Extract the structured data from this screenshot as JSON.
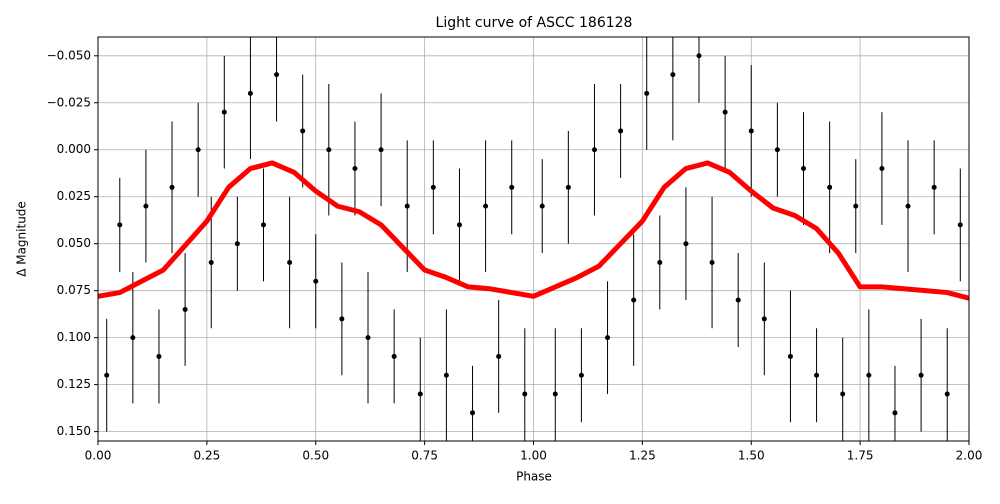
{
  "chart_data": {
    "type": "scatter",
    "title": "Light curve of ASCC 186128",
    "x_label": "Phase",
    "y_label": "Δ Magnitude",
    "xlim": [
      0,
      2
    ],
    "ylim": [
      -0.06,
      0.155
    ],
    "invert_y": true,
    "grid": true,
    "xticks": [
      {
        "value": 0,
        "label": "0.00"
      },
      {
        "value": 0.25,
        "label": "0.25"
      },
      {
        "value": 0.5,
        "label": "0.50"
      },
      {
        "value": 0.75,
        "label": "0.75"
      },
      {
        "value": 1,
        "label": "1.00"
      },
      {
        "value": 1.25,
        "label": "1.25"
      },
      {
        "value": 1.5,
        "label": "1.50"
      },
      {
        "value": 1.75,
        "label": "1.75"
      },
      {
        "value": 2,
        "label": "2.00"
      }
    ],
    "yticks": [
      {
        "value": -0.05,
        "label": "−0.050"
      },
      {
        "value": -0.025,
        "label": "−0.025"
      },
      {
        "value": 0,
        "label": "0.000"
      },
      {
        "value": 0.025,
        "label": "0.025"
      },
      {
        "value": 0.05,
        "label": "0.050"
      },
      {
        "value": 0.075,
        "label": "0.075"
      },
      {
        "value": 0.1,
        "label": "0.100"
      },
      {
        "value": 0.125,
        "label": "0.125"
      },
      {
        "value": 0.15,
        "label": "0.150"
      }
    ],
    "series": [
      {
        "kind": "errorbar",
        "color": "#000000",
        "x": [
          0.02,
          0.05,
          0.08,
          0.11,
          0.14,
          0.17,
          0.2,
          0.23,
          0.26,
          0.29,
          0.32,
          0.35,
          0.38,
          0.41,
          0.44,
          0.47,
          0.5,
          0.53,
          0.56,
          0.59,
          0.62,
          0.65,
          0.68,
          0.71,
          0.74,
          0.77,
          0.8,
          0.83,
          0.86,
          0.89,
          0.92,
          0.95,
          0.98,
          1.02,
          1.05,
          1.08,
          1.11,
          1.14,
          1.17,
          1.2,
          1.23,
          1.26,
          1.29,
          1.32,
          1.35,
          1.38,
          1.41,
          1.44,
          1.47,
          1.5,
          1.53,
          1.56,
          1.59,
          1.62,
          1.65,
          1.68,
          1.71,
          1.74,
          1.77,
          1.8,
          1.83,
          1.86,
          1.89,
          1.92,
          1.95,
          1.98
        ],
        "values": [
          0.12,
          0.04,
          0.1,
          0.03,
          0.11,
          0.02,
          0.085,
          0,
          0.06,
          -0.02,
          0.05,
          -0.03,
          0.04,
          -0.04,
          0.06,
          -0.01,
          0.07,
          0,
          0.09,
          0.01,
          0.1,
          0,
          0.11,
          0.03,
          0.13,
          0.02,
          0.12,
          0.04,
          0.14,
          0.03,
          0.11,
          0.02,
          0.13,
          0.03,
          0.13,
          0.02,
          0.12,
          0,
          0.1,
          -0.01,
          0.08,
          -0.03,
          0.06,
          -0.04,
          0.05,
          -0.05,
          0.06,
          -0.02,
          0.08,
          -0.01,
          0.09,
          0,
          0.11,
          0.01,
          0.12,
          0.02,
          0.13,
          0.03,
          0.12,
          0.01,
          0.14,
          0.03,
          0.12,
          0.02,
          0.13,
          0.04
        ],
        "errors": [
          0.03,
          0.025,
          0.035,
          0.03,
          0.025,
          0.035,
          0.03,
          0.025,
          0.035,
          0.03,
          0.025,
          0.035,
          0.03,
          0.025,
          0.035,
          0.03,
          0.025,
          0.035,
          0.03,
          0.025,
          0.035,
          0.03,
          0.025,
          0.035,
          0.03,
          0.025,
          0.035,
          0.03,
          0.025,
          0.035,
          0.03,
          0.025,
          0.035,
          0.025,
          0.035,
          0.03,
          0.025,
          0.035,
          0.03,
          0.025,
          0.035,
          0.03,
          0.025,
          0.035,
          0.03,
          0.025,
          0.035,
          0.03,
          0.025,
          0.035,
          0.03,
          0.025,
          0.035,
          0.03,
          0.025,
          0.035,
          0.03,
          0.025,
          0.035,
          0.03,
          0.025,
          0.035,
          0.03,
          0.025,
          0.035,
          0.03
        ]
      },
      {
        "kind": "line",
        "color": "#ff0000",
        "x": [
          0,
          0.05,
          0.1,
          0.15,
          0.2,
          0.25,
          0.3,
          0.35,
          0.4,
          0.45,
          0.5,
          0.55,
          0.6,
          0.65,
          0.7,
          0.75,
          0.8,
          0.85,
          0.9,
          0.95,
          1,
          1.05,
          1.1,
          1.15,
          1.2,
          1.25,
          1.3,
          1.35,
          1.4,
          1.45,
          1.5,
          1.55,
          1.6,
          1.65,
          1.7,
          1.75,
          1.8,
          1.85,
          1.9,
          1.95,
          2
        ],
        "values": [
          0.078,
          0.076,
          0.07,
          0.064,
          0.051,
          0.038,
          0.02,
          0.01,
          0.007,
          0.012,
          0.022,
          0.03,
          0.033,
          0.04,
          0.052,
          0.064,
          0.068,
          0.073,
          0.074,
          0.076,
          0.078,
          0.073,
          0.068,
          0.062,
          0.05,
          0.038,
          0.02,
          0.01,
          0.007,
          0.012,
          0.022,
          0.031,
          0.035,
          0.042,
          0.055,
          0.073,
          0.073,
          0.074,
          0.075,
          0.076,
          0.079
        ]
      }
    ]
  }
}
